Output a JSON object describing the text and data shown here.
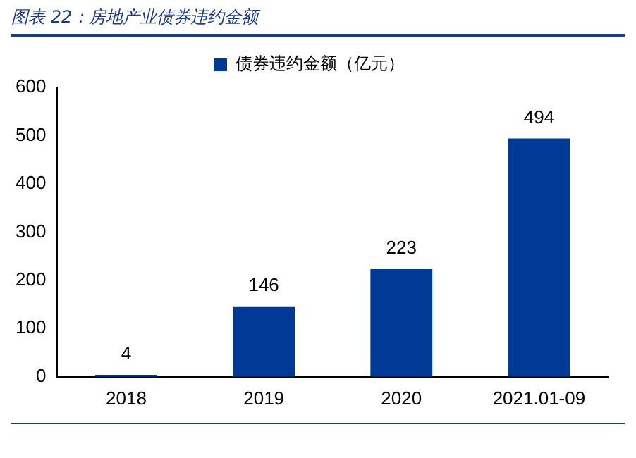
{
  "chart_data": {
    "type": "bar",
    "title": "图表 22：房地产业债券违约金额",
    "categories": [
      "2018",
      "2019",
      "2020",
      "2021.01-09"
    ],
    "series": [
      {
        "name": "债券违约金额（亿元）",
        "color": "#003a96",
        "values": [
          4,
          146,
          223,
          494
        ]
      }
    ],
    "ylim": [
      0,
      600
    ],
    "yticks": [
      0,
      100,
      200,
      300,
      400,
      500,
      600
    ],
    "grid": false,
    "legend": "top",
    "data_labels": true
  }
}
